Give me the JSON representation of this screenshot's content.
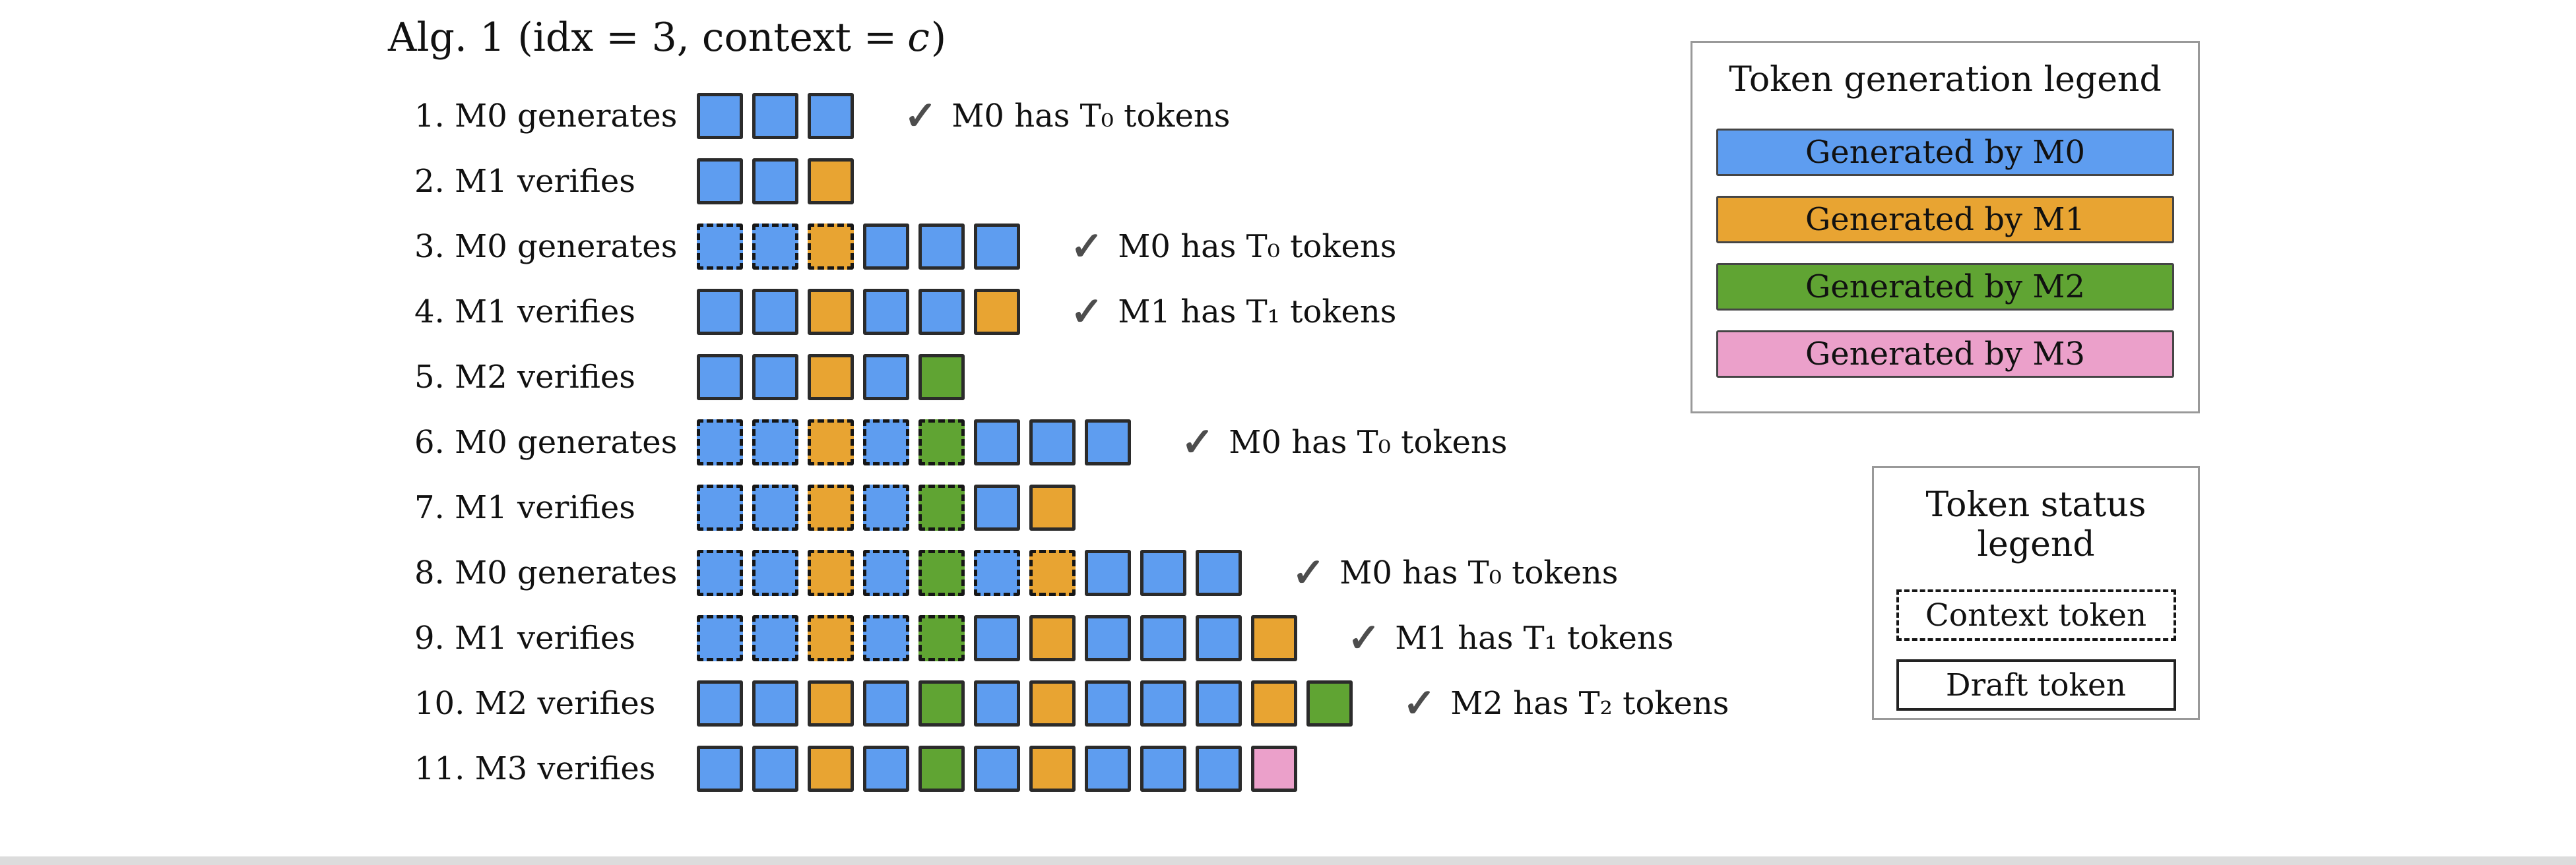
{
  "title": {
    "prefix": "Alg. 1 (idx = 3, context =",
    "context_symbol": "c",
    "suffix": ")"
  },
  "check_icon": "✓",
  "colors": {
    "m0": "#5e9df0",
    "m1": "#e8a432",
    "m2": "#60a433",
    "m3": "#eba0ca"
  },
  "rows": [
    {
      "label": "1. M0 generates",
      "check": "M0 has T₀ tokens",
      "tokens": [
        {
          "model": "m0",
          "status": "draft"
        },
        {
          "model": "m0",
          "status": "draft"
        },
        {
          "model": "m0",
          "status": "draft"
        }
      ]
    },
    {
      "label": "2. M1 verifies",
      "check": null,
      "tokens": [
        {
          "model": "m0",
          "status": "draft"
        },
        {
          "model": "m0",
          "status": "draft"
        },
        {
          "model": "m1",
          "status": "draft"
        }
      ]
    },
    {
      "label": "3. M0 generates",
      "check": "M0 has T₀ tokens",
      "tokens": [
        {
          "model": "m0",
          "status": "context"
        },
        {
          "model": "m0",
          "status": "context"
        },
        {
          "model": "m1",
          "status": "context"
        },
        {
          "model": "m0",
          "status": "draft"
        },
        {
          "model": "m0",
          "status": "draft"
        },
        {
          "model": "m0",
          "status": "draft"
        }
      ]
    },
    {
      "label": "4. M1 verifies",
      "check": "M1 has T₁ tokens",
      "tokens": [
        {
          "model": "m0",
          "status": "draft"
        },
        {
          "model": "m0",
          "status": "draft"
        },
        {
          "model": "m1",
          "status": "draft"
        },
        {
          "model": "m0",
          "status": "draft"
        },
        {
          "model": "m0",
          "status": "draft"
        },
        {
          "model": "m1",
          "status": "draft"
        }
      ]
    },
    {
      "label": "5. M2 verifies",
      "check": null,
      "tokens": [
        {
          "model": "m0",
          "status": "draft"
        },
        {
          "model": "m0",
          "status": "draft"
        },
        {
          "model": "m1",
          "status": "draft"
        },
        {
          "model": "m0",
          "status": "draft"
        },
        {
          "model": "m2",
          "status": "draft"
        }
      ]
    },
    {
      "label": "6. M0 generates",
      "check": "M0 has T₀ tokens",
      "tokens": [
        {
          "model": "m0",
          "status": "context"
        },
        {
          "model": "m0",
          "status": "context"
        },
        {
          "model": "m1",
          "status": "context"
        },
        {
          "model": "m0",
          "status": "context"
        },
        {
          "model": "m2",
          "status": "context"
        },
        {
          "model": "m0",
          "status": "draft"
        },
        {
          "model": "m0",
          "status": "draft"
        },
        {
          "model": "m0",
          "status": "draft"
        }
      ]
    },
    {
      "label": "7. M1 verifies",
      "check": null,
      "tokens": [
        {
          "model": "m0",
          "status": "context"
        },
        {
          "model": "m0",
          "status": "context"
        },
        {
          "model": "m1",
          "status": "context"
        },
        {
          "model": "m0",
          "status": "context"
        },
        {
          "model": "m2",
          "status": "context"
        },
        {
          "model": "m0",
          "status": "draft"
        },
        {
          "model": "m1",
          "status": "draft"
        }
      ]
    },
    {
      "label": "8. M0 generates",
      "check": "M0 has T₀ tokens",
      "tokens": [
        {
          "model": "m0",
          "status": "context"
        },
        {
          "model": "m0",
          "status": "context"
        },
        {
          "model": "m1",
          "status": "context"
        },
        {
          "model": "m0",
          "status": "context"
        },
        {
          "model": "m2",
          "status": "context"
        },
        {
          "model": "m0",
          "status": "context"
        },
        {
          "model": "m1",
          "status": "context"
        },
        {
          "model": "m0",
          "status": "draft"
        },
        {
          "model": "m0",
          "status": "draft"
        },
        {
          "model": "m0",
          "status": "draft"
        }
      ]
    },
    {
      "label": "9. M1 verifies",
      "check": "M1 has T₁ tokens",
      "tokens": [
        {
          "model": "m0",
          "status": "context"
        },
        {
          "model": "m0",
          "status": "context"
        },
        {
          "model": "m1",
          "status": "context"
        },
        {
          "model": "m0",
          "status": "context"
        },
        {
          "model": "m2",
          "status": "context"
        },
        {
          "model": "m0",
          "status": "draft"
        },
        {
          "model": "m1",
          "status": "draft"
        },
        {
          "model": "m0",
          "status": "draft"
        },
        {
          "model": "m0",
          "status": "draft"
        },
        {
          "model": "m0",
          "status": "draft"
        },
        {
          "model": "m1",
          "status": "draft"
        }
      ]
    },
    {
      "label": "10. M2 verifies",
      "check": "M2 has T₂ tokens",
      "tokens": [
        {
          "model": "m0",
          "status": "draft"
        },
        {
          "model": "m0",
          "status": "draft"
        },
        {
          "model": "m1",
          "status": "draft"
        },
        {
          "model": "m0",
          "status": "draft"
        },
        {
          "model": "m2",
          "status": "draft"
        },
        {
          "model": "m0",
          "status": "draft"
        },
        {
          "model": "m1",
          "status": "draft"
        },
        {
          "model": "m0",
          "status": "draft"
        },
        {
          "model": "m0",
          "status": "draft"
        },
        {
          "model": "m0",
          "status": "draft"
        },
        {
          "model": "m1",
          "status": "draft"
        },
        {
          "model": "m2",
          "status": "draft"
        }
      ]
    },
    {
      "label": "11. M3 verifies",
      "check": null,
      "tokens": [
        {
          "model": "m0",
          "status": "draft"
        },
        {
          "model": "m0",
          "status": "draft"
        },
        {
          "model": "m1",
          "status": "draft"
        },
        {
          "model": "m0",
          "status": "draft"
        },
        {
          "model": "m2",
          "status": "draft"
        },
        {
          "model": "m0",
          "status": "draft"
        },
        {
          "model": "m1",
          "status": "draft"
        },
        {
          "model": "m0",
          "status": "draft"
        },
        {
          "model": "m0",
          "status": "draft"
        },
        {
          "model": "m0",
          "status": "draft"
        },
        {
          "model": "m3",
          "status": "draft"
        }
      ]
    }
  ],
  "generation_legend": {
    "title": "Token generation legend",
    "items": [
      {
        "model": "m0",
        "label": "Generated by M0"
      },
      {
        "model": "m1",
        "label": "Generated by M1"
      },
      {
        "model": "m2",
        "label": "Generated by M2"
      },
      {
        "model": "m3",
        "label": "Generated by M3"
      }
    ]
  },
  "status_legend": {
    "title": "Token status legend",
    "items": [
      {
        "style": "context",
        "label": "Context token"
      },
      {
        "style": "draft",
        "label": "Draft token"
      }
    ]
  }
}
